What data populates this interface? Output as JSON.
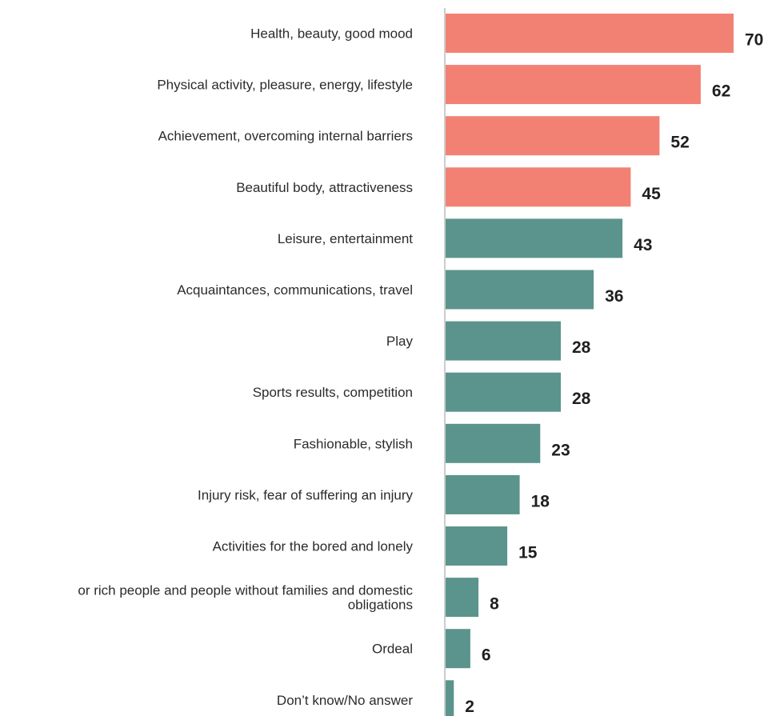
{
  "chart_data": {
    "type": "bar",
    "orientation": "horizontal",
    "categories": [
      "Health, beauty, good mood",
      "Physical activity, pleasure, energy, lifestyle",
      "Achievement, overcoming internal barriers",
      "Beautiful body, attractiveness",
      "Leisure, entertainment",
      "Acquaintances, communications, travel",
      "Play",
      "Sports results, competition",
      "Fashionable, stylish",
      "Injury risk, fear of suffering an injury",
      "Activities for the bored and lonely",
      "or rich people and people without families and domestic obligations",
      "Ordeal",
      "Don’t know/No answer"
    ],
    "category_lines": [
      [
        "Health, beauty, good mood"
      ],
      [
        "Physical activity, pleasure, energy, lifestyle"
      ],
      [
        "Achievement, overcoming internal barriers"
      ],
      [
        "Beautiful body, attractiveness"
      ],
      [
        "Leisure, entertainment"
      ],
      [
        "Acquaintances, communications, travel"
      ],
      [
        "Play"
      ],
      [
        "Sports results, competition"
      ],
      [
        "Fashionable, stylish"
      ],
      [
        "Injury risk, fear of suffering an injury"
      ],
      [
        "Activities for the bored and lonely"
      ],
      [
        "or rich people and people without families and domestic",
        "obligations"
      ],
      [
        "Ordeal"
      ],
      [
        "Don’t know/No answer"
      ]
    ],
    "values": [
      70,
      62,
      52,
      45,
      43,
      36,
      28,
      28,
      23,
      18,
      15,
      8,
      6,
      2
    ],
    "highlight_count": 4,
    "title": "",
    "xlabel": "",
    "ylabel": "",
    "xlim": [
      0,
      70
    ],
    "grid": false,
    "legend": "none"
  },
  "colors": {
    "highlight": "#f28174",
    "default": "#5b948c",
    "axis": "#cccccc"
  }
}
